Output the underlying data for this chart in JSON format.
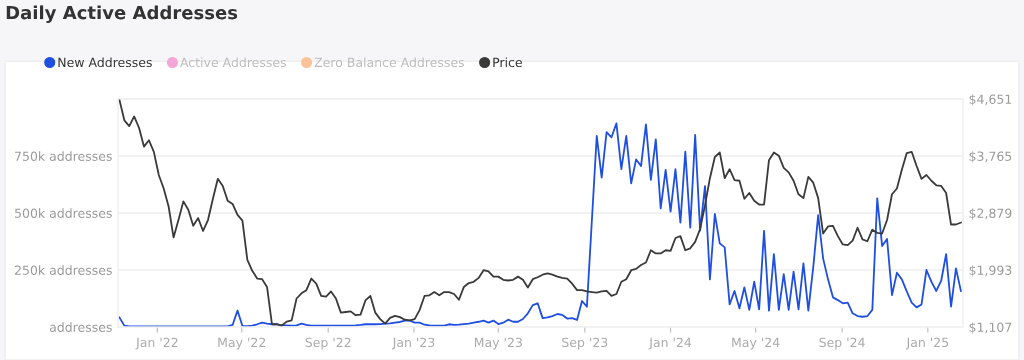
{
  "chart_data": {
    "type": "line",
    "title": "Daily Active Addresses",
    "x": [
      "2021-11-08",
      "2021-11-15",
      "2021-11-22",
      "2021-11-29",
      "2021-12-06",
      "2021-12-13",
      "2021-12-20",
      "2021-12-27",
      "2022-01-03",
      "2022-01-10",
      "2022-01-17",
      "2022-01-24",
      "2022-01-31",
      "2022-02-07",
      "2022-02-14",
      "2022-02-21",
      "2022-02-28",
      "2022-03-07",
      "2022-03-14",
      "2022-03-21",
      "2022-03-28",
      "2022-04-04",
      "2022-04-11",
      "2022-04-18",
      "2022-04-25",
      "2022-05-02",
      "2022-05-09",
      "2022-05-16",
      "2022-05-23",
      "2022-05-30",
      "2022-06-06",
      "2022-06-13",
      "2022-06-20",
      "2022-06-27",
      "2022-07-04",
      "2022-07-11",
      "2022-07-18",
      "2022-07-25",
      "2022-08-01",
      "2022-08-08",
      "2022-08-15",
      "2022-08-22",
      "2022-08-29",
      "2022-09-05",
      "2022-09-12",
      "2022-09-19",
      "2022-09-26",
      "2022-10-03",
      "2022-10-10",
      "2022-10-17",
      "2022-10-24",
      "2022-10-31",
      "2022-11-07",
      "2022-11-14",
      "2022-11-21",
      "2022-11-28",
      "2022-12-05",
      "2022-12-12",
      "2022-12-19",
      "2022-12-26",
      "2023-01-02",
      "2023-01-09",
      "2023-01-16",
      "2023-01-23",
      "2023-01-30",
      "2023-02-06",
      "2023-02-13",
      "2023-02-20",
      "2023-02-27",
      "2023-03-06",
      "2023-03-13",
      "2023-03-20",
      "2023-03-27",
      "2023-04-03",
      "2023-04-10",
      "2023-04-17",
      "2023-04-24",
      "2023-05-01",
      "2023-05-08",
      "2023-05-15",
      "2023-05-22",
      "2023-05-29",
      "2023-06-05",
      "2023-06-12",
      "2023-06-19",
      "2023-06-26",
      "2023-07-03",
      "2023-07-10",
      "2023-07-17",
      "2023-07-24",
      "2023-07-31",
      "2023-08-07",
      "2023-08-14",
      "2023-08-21",
      "2023-08-28",
      "2023-09-04",
      "2023-09-11",
      "2023-09-18",
      "2023-09-25",
      "2023-10-02",
      "2023-10-09",
      "2023-10-16",
      "2023-10-23",
      "2023-10-30",
      "2023-11-06",
      "2023-11-13",
      "2023-11-20",
      "2023-11-27",
      "2023-12-04",
      "2023-12-11",
      "2023-12-18",
      "2023-12-25",
      "2024-01-01",
      "2024-01-08",
      "2024-01-15",
      "2024-01-22",
      "2024-01-29",
      "2024-02-05",
      "2024-02-12",
      "2024-02-19",
      "2024-02-26",
      "2024-03-04",
      "2024-03-11",
      "2024-03-18",
      "2024-03-25",
      "2024-04-01",
      "2024-04-08",
      "2024-04-15",
      "2024-04-22",
      "2024-04-29",
      "2024-05-06",
      "2024-05-13",
      "2024-05-20",
      "2024-05-27",
      "2024-06-03",
      "2024-06-10",
      "2024-06-17",
      "2024-06-24",
      "2024-07-01",
      "2024-07-08",
      "2024-07-15",
      "2024-07-22",
      "2024-07-29",
      "2024-08-05",
      "2024-08-12",
      "2024-08-19",
      "2024-08-26",
      "2024-09-02",
      "2024-09-09",
      "2024-09-16",
      "2024-09-23",
      "2024-09-30",
      "2024-10-07",
      "2024-10-14",
      "2024-10-21",
      "2024-10-28",
      "2024-11-04",
      "2024-11-11",
      "2024-11-18",
      "2024-11-25",
      "2024-12-02",
      "2024-12-09",
      "2024-12-16",
      "2024-12-23",
      "2024-12-30",
      "2025-01-06",
      "2025-01-13",
      "2025-01-20",
      "2025-01-27",
      "2025-02-03",
      "2025-02-10",
      "2025-02-17"
    ],
    "series": [
      {
        "name": "New Addresses",
        "color": "#1f4fe0",
        "values": [
          42000,
          6000,
          3000,
          3000,
          3000,
          3000,
          3000,
          3000,
          3000,
          3000,
          3000,
          3000,
          3000,
          3000,
          3000,
          3000,
          3000,
          3000,
          3000,
          3000,
          3000,
          3000,
          3000,
          9000,
          72000,
          4000,
          4000,
          6000,
          12000,
          19000,
          15000,
          12000,
          12000,
          7000,
          7000,
          6000,
          7000,
          15000,
          9000,
          6000,
          6000,
          6000,
          6000,
          6000,
          6000,
          6000,
          6000,
          6000,
          7000,
          9000,
          12000,
          12000,
          12000,
          13000,
          15000,
          16000,
          19000,
          22000,
          28000,
          28000,
          19000,
          19000,
          10000,
          7000,
          6000,
          6000,
          6000,
          12000,
          9000,
          10000,
          13000,
          15000,
          19000,
          23000,
          28000,
          19000,
          28000,
          13000,
          19000,
          32000,
          23000,
          23000,
          35000,
          60000,
          96000,
          104000,
          39000,
          42000,
          48000,
          57000,
          53000,
          37000,
          39000,
          31000,
          114000,
          89000,
          463000,
          838000,
          655000,
          855000,
          832000,
          893000,
          692000,
          838000,
          630000,
          735000,
          706000,
          889000,
          645000,
          823000,
          520000,
          689000,
          506000,
          692000,
          458000,
          769000,
          436000,
          842000,
          423000,
          618000,
          209000,
          496000,
          367000,
          349000,
          99000,
          158000,
          82000,
          174000,
          75000,
          199000,
          77000,
          421000,
          72000,
          320000,
          75000,
          232000,
          75000,
          243000,
          77000,
          279000,
          72000,
          263000,
          491000,
          301000,
          209000,
          130000,
          118000,
          104000,
          107000,
          60000,
          48000,
          45000,
          48000,
          75000,
          564000,
          355000,
          386000,
          140000,
          238000,
          209000,
          156000,
          107000,
          86000,
          99000,
          250000,
          199000,
          158000,
          203000,
          320000,
          89000,
          257000,
          158000
        ]
      },
      {
        "name": "Active Addresses",
        "color": "#f4a6d7",
        "values": [
          null,
          null,
          null,
          null,
          null,
          null,
          null,
          null,
          null,
          null,
          null,
          null,
          null,
          null,
          null,
          null,
          null,
          null,
          null,
          null,
          null,
          null,
          null,
          null,
          null,
          null,
          null,
          null,
          null,
          null,
          null,
          null,
          null,
          null,
          null,
          null,
          null,
          null,
          null,
          null,
          null,
          null,
          null,
          null,
          null,
          null,
          null,
          null,
          null,
          null,
          null,
          null,
          null,
          null,
          null,
          null,
          null,
          null,
          null,
          null,
          null,
          null,
          null,
          null,
          null,
          null,
          null,
          null,
          null,
          null,
          null,
          null,
          null,
          null,
          null,
          null,
          null,
          null,
          null,
          null,
          null,
          null,
          null,
          null,
          null,
          null,
          null,
          null,
          null,
          null,
          null,
          null,
          null,
          null,
          null,
          null,
          null,
          null,
          null,
          null,
          null,
          null,
          null,
          null,
          null,
          null,
          null,
          null,
          null,
          null,
          null,
          null,
          null,
          null,
          null,
          null,
          null,
          null,
          null,
          null,
          null,
          null,
          null,
          null,
          null,
          null,
          null,
          null,
          null,
          null,
          null,
          null,
          null,
          null,
          null,
          null,
          null,
          null,
          null,
          null,
          null,
          null,
          null,
          null,
          null,
          null,
          null,
          null,
          null,
          null,
          null,
          null,
          null,
          null,
          null,
          null,
          null,
          null,
          null,
          null,
          null,
          null,
          null,
          null,
          null,
          null,
          null,
          null,
          null,
          null,
          null,
          null
        ]
      },
      {
        "name": "Zero Balance Addresses",
        "color": "#f9c29a",
        "values": [
          null,
          null,
          null,
          null,
          null,
          null,
          null,
          null,
          null,
          null,
          null,
          null,
          null,
          null,
          null,
          null,
          null,
          null,
          null,
          null,
          null,
          null,
          null,
          null,
          null,
          null,
          null,
          null,
          null,
          null,
          null,
          null,
          null,
          null,
          null,
          null,
          null,
          null,
          null,
          null,
          null,
          null,
          null,
          null,
          null,
          null,
          null,
          null,
          null,
          null,
          null,
          null,
          null,
          null,
          null,
          null,
          null,
          null,
          null,
          null,
          null,
          null,
          null,
          null,
          null,
          null,
          null,
          null,
          null,
          null,
          null,
          null,
          null,
          null,
          null,
          null,
          null,
          null,
          null,
          null,
          null,
          null,
          null,
          null,
          null,
          null,
          null,
          null,
          null,
          null,
          null,
          null,
          null,
          null,
          null,
          null,
          null,
          null,
          null,
          null,
          null,
          null,
          null,
          null,
          null,
          null,
          null,
          null,
          null,
          null,
          null,
          null,
          null,
          null,
          null,
          null,
          null,
          null,
          null,
          null,
          null,
          null,
          null,
          null,
          null,
          null,
          null,
          null,
          null,
          null,
          null,
          null,
          null,
          null,
          null,
          null,
          null,
          null,
          null,
          null,
          null,
          null,
          null,
          null,
          null,
          null,
          null,
          null,
          null,
          null,
          null,
          null,
          null,
          null,
          null,
          null,
          null,
          null,
          null,
          null,
          null,
          null,
          null,
          null,
          null,
          null,
          null,
          null,
          null,
          null,
          null,
          null
        ]
      },
      {
        "name": "Price",
        "color": "#3a3a3a",
        "axis": "y2",
        "values": [
          4640,
          4320,
          4230,
          4380,
          4200,
          3910,
          4010,
          3830,
          3470,
          3260,
          2980,
          2500,
          2770,
          3060,
          2930,
          2680,
          2800,
          2600,
          2770,
          3100,
          3410,
          3300,
          3070,
          3020,
          2850,
          2760,
          2150,
          1980,
          1860,
          1850,
          1730,
          1150,
          1150,
          1130,
          1190,
          1210,
          1550,
          1630,
          1680,
          1860,
          1780,
          1590,
          1580,
          1660,
          1550,
          1330,
          1340,
          1350,
          1290,
          1300,
          1520,
          1590,
          1330,
          1230,
          1160,
          1250,
          1280,
          1260,
          1220,
          1210,
          1230,
          1370,
          1590,
          1600,
          1650,
          1600,
          1650,
          1650,
          1620,
          1530,
          1730,
          1790,
          1810,
          1870,
          1990,
          1970,
          1890,
          1890,
          1840,
          1830,
          1840,
          1890,
          1840,
          1720,
          1850,
          1880,
          1920,
          1940,
          1920,
          1890,
          1870,
          1860,
          1780,
          1680,
          1680,
          1660,
          1650,
          1640,
          1660,
          1670,
          1590,
          1620,
          1810,
          1850,
          1990,
          2010,
          2070,
          2110,
          2300,
          2250,
          2250,
          2300,
          2290,
          2490,
          2520,
          2300,
          2330,
          2430,
          2630,
          3000,
          3420,
          3750,
          3820,
          3420,
          3560,
          3390,
          3380,
          3100,
          3190,
          3070,
          3010,
          3010,
          3700,
          3820,
          3770,
          3580,
          3510,
          3380,
          3170,
          3110,
          3440,
          3350,
          3110,
          2560,
          2670,
          2680,
          2520,
          2390,
          2380,
          2450,
          2650,
          2470,
          2440,
          2620,
          2570,
          2560,
          2770,
          3170,
          3260,
          3550,
          3810,
          3830,
          3610,
          3410,
          3470,
          3380,
          3310,
          3300,
          3190,
          2700,
          2700,
          2730
        ]
      }
    ],
    "xlim": [
      "2021-11-06",
      "2025-02-20"
    ],
    "xticks": [
      {
        "value": "2022-01-01",
        "label": "Jan '22"
      },
      {
        "value": "2022-05-01",
        "label": "May '22"
      },
      {
        "value": "2022-09-01",
        "label": "Sep '22"
      },
      {
        "value": "2023-01-01",
        "label": "Jan '23"
      },
      {
        "value": "2023-05-01",
        "label": "May '23"
      },
      {
        "value": "2023-09-01",
        "label": "Sep '23"
      },
      {
        "value": "2024-01-01",
        "label": "Jan '24"
      },
      {
        "value": "2024-05-01",
        "label": "May '24"
      },
      {
        "value": "2024-09-01",
        "label": "Sep '24"
      },
      {
        "value": "2025-01-01",
        "label": "Jan '25"
      }
    ],
    "ylim": [
      0,
      1000000
    ],
    "yticks": [
      {
        "value": 0,
        "label": "addresses"
      },
      {
        "value": 250000,
        "label": "250k addresses"
      },
      {
        "value": 500000,
        "label": "500k addresses"
      },
      {
        "value": 750000,
        "label": "750k addresses"
      },
      {
        "value": 1000000,
        "label": null
      }
    ],
    "y2lim": [
      1107,
      4651
    ],
    "y2ticks": [
      {
        "value": 1107,
        "label": "$1,107"
      },
      {
        "value": 1993,
        "label": "$1,993"
      },
      {
        "value": 2879,
        "label": "$2,879"
      },
      {
        "value": 3765,
        "label": "$3,765"
      },
      {
        "value": 4651,
        "label": "$4,651"
      }
    ],
    "grid": "y",
    "legend": "top left"
  }
}
